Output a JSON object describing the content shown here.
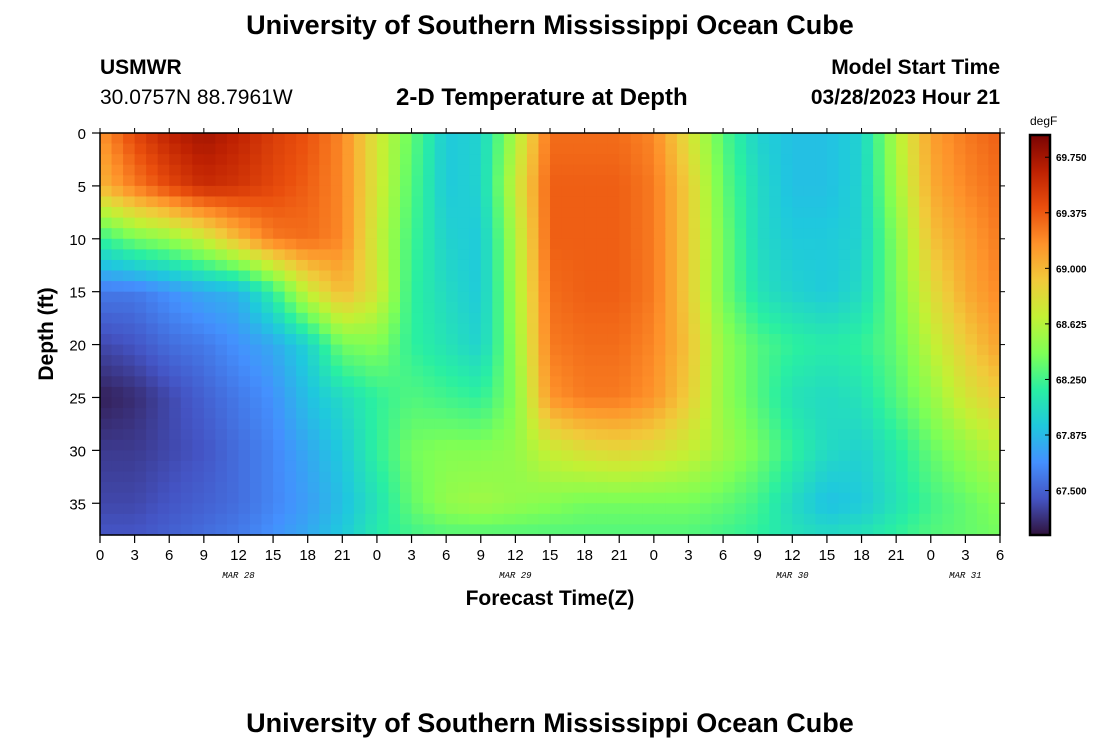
{
  "header": {
    "title": "University of Southern Mississippi Ocean Cube",
    "station_id": "USMWR",
    "station_coords": "30.0757N  88.7961W",
    "subtitle": "2-D Temperature at Depth",
    "model_start_label": "Model Start Time",
    "model_start_value": "03/28/2023 Hour 21"
  },
  "footer": {
    "title": "University of Southern Mississippi Ocean Cube"
  },
  "chart_data": {
    "type": "heatmap",
    "xlabel": "Forecast Time(Z)",
    "ylabel": "Depth (ft)",
    "x_range_hours": [
      0,
      78
    ],
    "y_range_ft": [
      0,
      38
    ],
    "y_inverted": true,
    "x_tick_labels": [
      "0",
      "3",
      "6",
      "9",
      "12",
      "15",
      "18",
      "21",
      "0",
      "3",
      "6",
      "9",
      "12",
      "15",
      "18",
      "21",
      "0",
      "3",
      "6",
      "9",
      "12",
      "15",
      "18",
      "21",
      "0",
      "3",
      "6"
    ],
    "y_tick_labels": [
      "0",
      "5",
      "10",
      "15",
      "20",
      "25",
      "30",
      "35"
    ],
    "day_labels": [
      {
        "label": "MAR 28",
        "hour": 12
      },
      {
        "label": "MAR 29",
        "hour": 36
      },
      {
        "label": "MAR 30",
        "hour": 60
      },
      {
        "label": "MAR 31",
        "hour": 75
      }
    ],
    "colorbar": {
      "unit": "degF",
      "min": 67.2,
      "max": 69.9,
      "tick_labels": [
        "69.750",
        "69.375",
        "69.000",
        "68.625",
        "68.250",
        "67.875",
        "67.500"
      ],
      "tick_values": [
        69.75,
        69.375,
        69.0,
        68.625,
        68.25,
        67.875,
        67.5
      ],
      "colormap": [
        "#30123b",
        "#4454c4",
        "#4490fe",
        "#1fc8de",
        "#29efa2",
        "#7eff55",
        "#c3f134",
        "#f1ca3a",
        "#fe922a",
        "#ea4f0d",
        "#be2102",
        "#7a0403"
      ]
    },
    "depth_levels_ft": [
      0,
      5,
      10,
      15,
      20,
      25,
      30,
      35,
      38
    ],
    "time_hours": [
      0,
      3,
      6,
      9,
      12,
      15,
      18,
      21,
      24,
      27,
      30,
      33,
      36,
      39,
      42,
      45,
      48,
      51,
      54,
      57,
      60,
      63,
      66,
      69,
      72,
      75,
      78
    ],
    "values": [
      [
        69.15,
        69.45,
        69.65,
        69.75,
        69.65,
        69.5,
        69.4,
        69.2,
        68.75,
        68.35,
        67.95,
        68.0,
        68.6,
        69.3,
        69.3,
        69.3,
        69.2,
        68.8,
        68.3,
        68.0,
        67.9,
        67.9,
        68.0,
        68.6,
        69.1,
        69.25,
        69.35
      ],
      [
        69.0,
        69.25,
        69.45,
        69.6,
        69.55,
        69.45,
        69.35,
        69.2,
        68.75,
        68.3,
        67.95,
        68.0,
        68.7,
        69.35,
        69.35,
        69.35,
        69.25,
        68.9,
        68.35,
        68.05,
        67.9,
        67.9,
        68.0,
        68.55,
        69.05,
        69.2,
        69.3
      ],
      [
        68.2,
        68.4,
        68.5,
        68.7,
        69.0,
        69.25,
        69.3,
        69.2,
        68.7,
        68.25,
        68.0,
        67.95,
        68.6,
        69.35,
        69.35,
        69.35,
        69.25,
        68.9,
        68.4,
        68.05,
        67.95,
        67.95,
        68.0,
        68.45,
        68.95,
        69.1,
        69.25
      ],
      [
        67.6,
        67.6,
        67.7,
        67.8,
        67.85,
        68.2,
        68.7,
        69.0,
        68.75,
        68.2,
        68.05,
        67.95,
        68.55,
        69.3,
        69.35,
        69.35,
        69.25,
        68.9,
        68.4,
        68.1,
        68.0,
        67.95,
        68.05,
        68.4,
        68.8,
        69.05,
        69.2
      ],
      [
        67.4,
        67.45,
        67.55,
        67.6,
        67.7,
        67.8,
        68.0,
        68.4,
        68.45,
        68.2,
        68.1,
        68.0,
        68.5,
        69.25,
        69.3,
        69.3,
        69.2,
        68.95,
        68.5,
        68.3,
        68.2,
        68.15,
        68.2,
        68.35,
        68.65,
        68.9,
        69.1
      ],
      [
        67.25,
        67.3,
        67.4,
        67.5,
        67.6,
        67.7,
        67.9,
        68.05,
        68.2,
        68.3,
        68.25,
        68.2,
        68.45,
        69.15,
        69.25,
        69.25,
        69.15,
        68.9,
        68.5,
        68.3,
        68.1,
        68.05,
        68.1,
        68.3,
        68.5,
        68.75,
        68.9
      ],
      [
        67.35,
        67.35,
        67.4,
        67.45,
        67.55,
        67.65,
        67.8,
        67.95,
        68.2,
        68.4,
        68.45,
        68.45,
        68.5,
        68.7,
        68.8,
        68.85,
        68.8,
        68.7,
        68.55,
        68.4,
        68.2,
        68.05,
        68.0,
        68.15,
        68.35,
        68.5,
        68.65
      ],
      [
        67.4,
        67.4,
        67.45,
        67.5,
        67.55,
        67.65,
        67.75,
        67.9,
        68.1,
        68.35,
        68.5,
        68.55,
        68.5,
        68.45,
        68.4,
        68.4,
        68.4,
        68.4,
        68.35,
        68.25,
        68.05,
        67.9,
        67.95,
        68.1,
        68.25,
        68.35,
        68.45
      ],
      [
        67.45,
        67.45,
        67.5,
        67.55,
        67.6,
        67.7,
        67.8,
        67.95,
        68.15,
        68.25,
        68.3,
        68.3,
        68.3,
        68.3,
        68.3,
        68.3,
        68.3,
        68.3,
        68.25,
        68.2,
        68.1,
        68.05,
        68.1,
        68.2,
        68.3,
        68.35,
        68.4
      ]
    ]
  }
}
